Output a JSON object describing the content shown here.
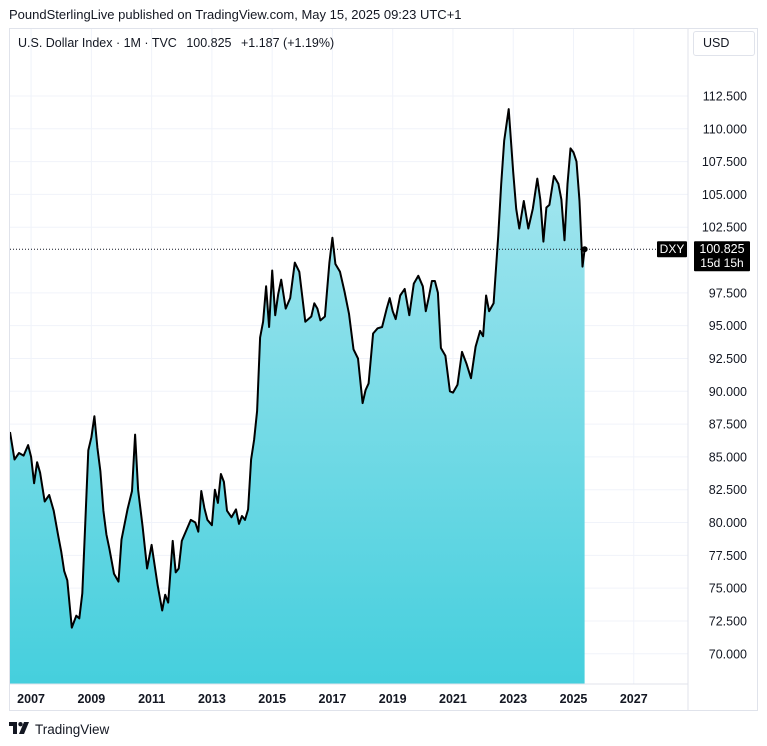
{
  "header": {
    "attribution": "PoundSterlingLive published on TradingView.com, May 15, 2025 09:23 UTC+1"
  },
  "legend": {
    "symbol": "U.S. Dollar Index · 1M · TVC",
    "value": "100.825",
    "change": "+1.187 (+1.19%)"
  },
  "currency_button": "USD",
  "price_tag": {
    "ticker": "DXY",
    "price": "100.825",
    "countdown": "15d 15h"
  },
  "footer": {
    "brand": "TradingView"
  },
  "colors": {
    "line": "#000000",
    "fill_top": "#aee8f1",
    "fill_bottom": "#45cfdd",
    "grid": "#f0f3fa",
    "tag_bg": "#000000"
  },
  "chart_data": {
    "type": "area",
    "title": "U.S. Dollar Index · 1M · TVC",
    "xlabel": "",
    "ylabel": "",
    "x_tick_labels": [
      "2007",
      "2009",
      "2011",
      "2013",
      "2015",
      "2017",
      "2019",
      "2021",
      "2023",
      "2025",
      "2027"
    ],
    "y_tick_labels": [
      "70.000",
      "72.500",
      "75.000",
      "77.500",
      "80.000",
      "82.500",
      "85.000",
      "87.500",
      "90.000",
      "92.500",
      "95.000",
      "97.500",
      "102.500",
      "105.000",
      "107.500",
      "110.000",
      "112.500"
    ],
    "ylim": [
      67.7,
      117.6
    ],
    "xlim": [
      2006.3,
      2028.8
    ],
    "grid": true,
    "last_value": 100.825,
    "series": [
      {
        "x": [
          2006.3,
          2006.45,
          2006.6,
          2006.75,
          2006.9,
          2007.0,
          2007.1,
          2007.2,
          2007.3,
          2007.45,
          2007.6,
          2007.75,
          2007.9,
          2008.0,
          2008.1,
          2008.2,
          2008.35,
          2008.5,
          2008.6,
          2008.7,
          2008.8,
          2008.9,
          2009.0,
          2009.1,
          2009.2,
          2009.3,
          2009.4,
          2009.5,
          2009.6,
          2009.75,
          2009.9,
          2010.0,
          2010.2,
          2010.35,
          2010.45,
          2010.55,
          2010.7,
          2010.85,
          2011.0,
          2011.2,
          2011.35,
          2011.45,
          2011.55,
          2011.7,
          2011.8,
          2011.9,
          2012.0,
          2012.15,
          2012.3,
          2012.45,
          2012.55,
          2012.65,
          2012.75,
          2012.85,
          2013.0,
          2013.1,
          2013.2,
          2013.3,
          2013.4,
          2013.5,
          2013.65,
          2013.8,
          2013.9,
          2014.0,
          2014.1,
          2014.2,
          2014.3,
          2014.4,
          2014.5,
          2014.6,
          2014.7,
          2014.8,
          2014.9,
          2015.0,
          2015.1,
          2015.2,
          2015.3,
          2015.45,
          2015.6,
          2015.75,
          2015.9,
          2016.1,
          2016.3,
          2016.4,
          2016.5,
          2016.6,
          2016.75,
          2016.9,
          2017.0,
          2017.1,
          2017.25,
          2017.4,
          2017.55,
          2017.7,
          2017.85,
          2018.0,
          2018.1,
          2018.2,
          2018.35,
          2018.5,
          2018.65,
          2018.8,
          2018.9,
          2019.0,
          2019.1,
          2019.25,
          2019.4,
          2019.55,
          2019.7,
          2019.85,
          2020.0,
          2020.1,
          2020.2,
          2020.3,
          2020.4,
          2020.5,
          2020.6,
          2020.75,
          2020.9,
          2021.0,
          2021.15,
          2021.3,
          2021.45,
          2021.6,
          2021.75,
          2021.9,
          2022.0,
          2022.1,
          2022.2,
          2022.35,
          2022.5,
          2022.6,
          2022.7,
          2022.85,
          2023.0,
          2023.1,
          2023.2,
          2023.35,
          2023.5,
          2023.65,
          2023.8,
          2023.9,
          2024.0,
          2024.1,
          2024.2,
          2024.35,
          2024.5,
          2024.6,
          2024.7,
          2024.8,
          2024.9,
          2025.0,
          2025.1,
          2025.2,
          2025.3,
          2025.37
        ],
        "values": [
          86.9,
          84.8,
          85.3,
          85.1,
          85.9,
          85.0,
          83.0,
          84.6,
          83.8,
          81.6,
          82.1,
          80.9,
          79.0,
          77.8,
          76.3,
          75.6,
          72.0,
          72.9,
          72.7,
          74.6,
          80.0,
          85.5,
          86.5,
          88.1,
          85.7,
          83.9,
          80.9,
          79.1,
          78.0,
          76.1,
          75.5,
          78.7,
          81.0,
          82.4,
          86.7,
          82.5,
          79.7,
          76.5,
          78.3,
          75.2,
          73.3,
          74.5,
          73.9,
          78.6,
          76.2,
          76.5,
          78.6,
          79.4,
          80.2,
          80.0,
          79.3,
          82.4,
          81.1,
          80.2,
          79.8,
          82.5,
          81.5,
          83.7,
          83.1,
          80.9,
          80.4,
          81.0,
          79.9,
          80.5,
          80.2,
          81.0,
          84.8,
          86.3,
          88.5,
          94.1,
          95.3,
          98.0,
          94.9,
          99.2,
          95.8,
          97.4,
          98.5,
          96.3,
          97.1,
          99.8,
          99.1,
          95.3,
          95.7,
          96.7,
          96.3,
          95.4,
          95.7,
          99.8,
          101.7,
          99.7,
          99.1,
          97.6,
          95.9,
          93.2,
          92.5,
          89.1,
          90.1,
          90.6,
          94.4,
          94.8,
          94.9,
          96.3,
          97.1,
          96.1,
          95.5,
          97.3,
          97.8,
          95.8,
          98.2,
          98.8,
          98.0,
          96.1,
          97.2,
          98.4,
          98.4,
          97.5,
          93.3,
          92.7,
          90.0,
          89.9,
          90.5,
          93.0,
          92.1,
          91.0,
          93.4,
          94.6,
          94.2,
          97.3,
          96.1,
          96.7,
          101.8,
          105.8,
          109.1,
          111.5,
          106.7,
          103.9,
          102.4,
          104.5,
          102.4,
          103.9,
          106.2,
          104.6,
          101.4,
          104.0,
          104.2,
          106.4,
          105.8,
          104.6,
          101.5,
          105.8,
          108.5,
          108.2,
          107.5,
          104.5,
          99.5,
          100.8
        ]
      }
    ]
  }
}
